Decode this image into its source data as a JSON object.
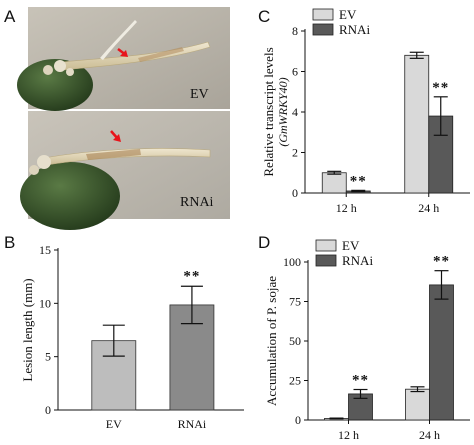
{
  "panels": {
    "a": {
      "letter": "A",
      "photo_top_label": "EV",
      "photo_bottom_label": "RNAi"
    },
    "b": {
      "letter": "B"
    },
    "c": {
      "letter": "C"
    },
    "d": {
      "letter": "D"
    }
  },
  "colors": {
    "ev": "#d9d9d9",
    "rnai": "#595959",
    "bar_b_ev": "#bdbdbd",
    "bar_b_rnai": "#8a8a8a",
    "arrow": "#e8141b"
  },
  "chart_data": [
    {
      "id": "B",
      "type": "bar",
      "categories": [
        "EV",
        "RNAi"
      ],
      "values": [
        6.5,
        9.85
      ],
      "errors": [
        1.45,
        1.75
      ],
      "significance": [
        "",
        "**"
      ],
      "ylabel": "Lesion length (mm)",
      "ylim": [
        0,
        15
      ],
      "yticks": [
        0,
        5,
        10,
        15
      ],
      "grid": false
    },
    {
      "id": "C",
      "type": "bar",
      "categories": [
        "12 h",
        "24 h"
      ],
      "series": [
        {
          "name": "EV",
          "values": [
            1.0,
            6.8
          ],
          "errors": [
            0.07,
            0.15
          ]
        },
        {
          "name": "RNAi",
          "values": [
            0.1,
            3.8
          ],
          "errors": [
            0.03,
            0.95
          ]
        }
      ],
      "significance": [
        [
          "",
          "**"
        ],
        [
          "",
          "**"
        ]
      ],
      "ylabel": "Relative transcript levels",
      "ylabel_sub": "(GmWRKY40)",
      "ylim": [
        0,
        8
      ],
      "yticks": [
        0,
        2,
        4,
        6,
        8
      ],
      "legend": "top-left",
      "grid": false
    },
    {
      "id": "D",
      "type": "bar",
      "categories": [
        "12 h",
        "24 h"
      ],
      "series": [
        {
          "name": "EV",
          "values": [
            1.0,
            19.5
          ],
          "errors": [
            0.2,
            1.5
          ]
        },
        {
          "name": "RNAi",
          "values": [
            16.5,
            85.5
          ],
          "errors": [
            2.8,
            9.0
          ]
        }
      ],
      "significance": [
        [
          "",
          "**"
        ],
        [
          "",
          "**"
        ]
      ],
      "ylabel": "Accumulation of P. sojae",
      "ylim": [
        0,
        100
      ],
      "yticks": [
        0,
        25,
        50,
        75,
        100
      ],
      "legend": "top-left",
      "grid": false
    }
  ]
}
